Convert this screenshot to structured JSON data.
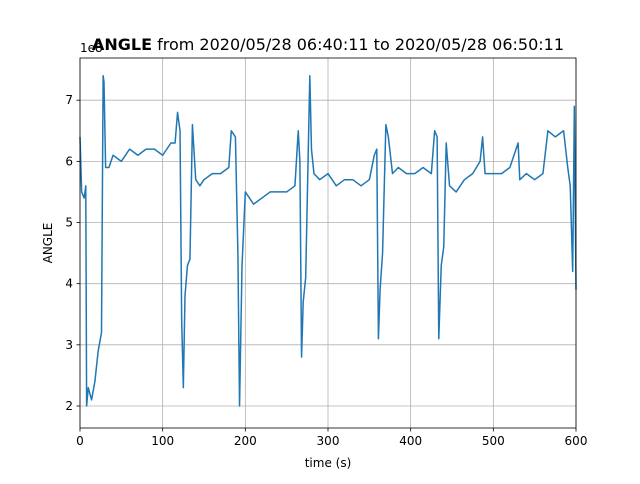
{
  "chart_data": {
    "type": "line",
    "title_bold": "ANGLE",
    "title": "from 2020/05/28 06:40:11 to 2020/05/28 06:50:11",
    "x_label": "time (s)",
    "y_label": "ANGLE",
    "y_offset_text": "1e8",
    "grid": true,
    "xlim": [
      0,
      600
    ],
    "xticks": [
      0,
      100,
      200,
      300,
      400,
      500,
      600
    ],
    "ylim": [
      1.64,
      7.69
    ],
    "yticks": [
      2,
      3,
      4,
      5,
      6,
      7
    ],
    "series": [
      {
        "name": "ANGLE",
        "color": "#1f77b4",
        "x": [
          0,
          2,
          5,
          7,
          8,
          10,
          14,
          18,
          22,
          26,
          28,
          29,
          31,
          35,
          40,
          50,
          60,
          70,
          80,
          90,
          100,
          110,
          115,
          118,
          121,
          123,
          125,
          127,
          130,
          133,
          136,
          140,
          145,
          150,
          160,
          170,
          180,
          183,
          188,
          191,
          193,
          196,
          200,
          205,
          210,
          220,
          230,
          240,
          250,
          260,
          264,
          266,
          268,
          270,
          273,
          278,
          280,
          283,
          290,
          300,
          310,
          320,
          330,
          340,
          350,
          356,
          359,
          361,
          363,
          366,
          370,
          373,
          378,
          385,
          395,
          405,
          415,
          425,
          429,
          432,
          434,
          437,
          440,
          443,
          447,
          455,
          465,
          475,
          484,
          487,
          490,
          500,
          510,
          520,
          530,
          532,
          540,
          550,
          560,
          566,
          575,
          585,
          590,
          593,
          596,
          598,
          600
        ],
        "values": [
          6.4,
          5.5,
          5.4,
          5.6,
          2.0,
          2.3,
          2.1,
          2.4,
          2.9,
          3.2,
          7.4,
          7.3,
          5.9,
          5.9,
          6.1,
          6.0,
          6.2,
          6.1,
          6.2,
          6.2,
          6.1,
          6.3,
          6.3,
          6.8,
          6.5,
          3.4,
          2.3,
          3.8,
          4.3,
          4.4,
          6.6,
          5.7,
          5.6,
          5.7,
          5.8,
          5.8,
          5.9,
          6.5,
          6.4,
          4.5,
          2.0,
          4.3,
          5.5,
          5.4,
          5.3,
          5.4,
          5.5,
          5.5,
          5.5,
          5.6,
          6.5,
          6.0,
          2.8,
          3.7,
          4.1,
          7.4,
          6.2,
          5.8,
          5.7,
          5.8,
          5.6,
          5.7,
          5.7,
          5.6,
          5.7,
          6.1,
          6.2,
          3.1,
          3.9,
          4.5,
          6.6,
          6.4,
          5.8,
          5.9,
          5.8,
          5.8,
          5.9,
          5.8,
          6.5,
          6.4,
          3.1,
          4.3,
          4.6,
          6.3,
          5.6,
          5.5,
          5.7,
          5.8,
          6.0,
          6.4,
          5.8,
          5.8,
          5.8,
          5.9,
          6.3,
          5.7,
          5.8,
          5.7,
          5.8,
          6.5,
          6.4,
          6.5,
          5.9,
          5.6,
          4.2,
          6.9,
          3.9
        ]
      }
    ]
  }
}
